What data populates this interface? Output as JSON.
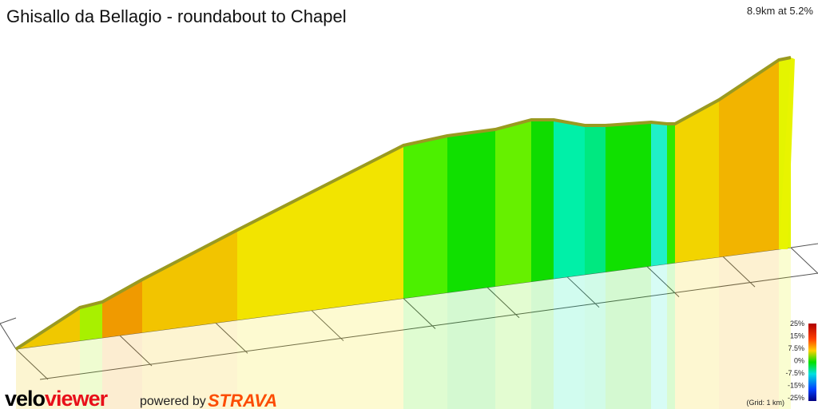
{
  "header": {
    "title": "Ghisallo da Bellagio - roundabout to Chapel",
    "summary": "8.9km at 5.2%"
  },
  "legend": {
    "labels": [
      "25%",
      "15%",
      "7.5%",
      "0%",
      "-7.5%",
      "-15%",
      "-25%"
    ],
    "grid_note": "(Grid: 1 km)"
  },
  "branding": {
    "logo_a": "velo",
    "logo_b": "viewer",
    "powered": "powered by",
    "strava": "STRAVA"
  }
}
